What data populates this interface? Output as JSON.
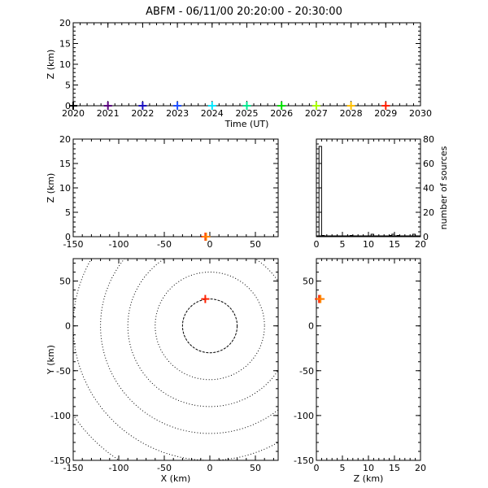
{
  "title": "ABFM - 06/11/00 20:20:00 - 20:30:00",
  "chart_data": [
    {
      "id": "time-height",
      "type": "scatter",
      "xlabel": "Time (UT)",
      "ylabel": "Z (km)",
      "xlim": [
        2020,
        2030
      ],
      "ylim": [
        0,
        20
      ],
      "xticks": [
        "2020",
        "2021",
        "2022",
        "2023",
        "2024",
        "2025",
        "2026",
        "2027",
        "2028",
        "2029",
        "2030"
      ],
      "yticks": [
        "0",
        "5",
        "10",
        "15",
        "20"
      ],
      "points": [
        {
          "x": 2020.0,
          "y": 0,
          "color": "#000000"
        },
        {
          "x": 2021.0,
          "y": 0,
          "color": "#5a007f"
        },
        {
          "x": 2022.0,
          "y": 0,
          "color": "#1a10c0"
        },
        {
          "x": 2023.0,
          "y": 0,
          "color": "#2050ff"
        },
        {
          "x": 2024.0,
          "y": 0,
          "color": "#00e8ff"
        },
        {
          "x": 2025.0,
          "y": 0,
          "color": "#00e890"
        },
        {
          "x": 2026.0,
          "y": 0,
          "color": "#00e000"
        },
        {
          "x": 2027.0,
          "y": 0,
          "color": "#a8ff00"
        },
        {
          "x": 2028.0,
          "y": 0,
          "color": "#ffc000"
        },
        {
          "x": 2029.0,
          "y": 0,
          "color": "#ff2000"
        }
      ]
    },
    {
      "id": "x-z",
      "type": "scatter",
      "xlabel": "",
      "ylabel": "Z (km)",
      "xlim": [
        -150,
        75
      ],
      "ylim": [
        0,
        20
      ],
      "xticks": [
        "-150",
        "-100",
        "-50",
        "0",
        "50"
      ],
      "yticks": [
        "0",
        "5",
        "10",
        "15",
        "20"
      ],
      "points": [
        {
          "x": -5,
          "y": 0,
          "color": "#ff2000"
        },
        {
          "x": -4,
          "y": 0,
          "color": "#ff8000"
        }
      ]
    },
    {
      "id": "histogram",
      "type": "bar",
      "xlabel": "",
      "ylabel": "number of sources",
      "xlim": [
        0,
        20
      ],
      "ylim": [
        0,
        80
      ],
      "xticks": [
        "0",
        "5",
        "10",
        "15",
        "20"
      ],
      "yticks": [
        "0",
        "20",
        "40",
        "60",
        "80"
      ],
      "bin_width": 0.5,
      "bins_start": [
        0.5,
        1.0,
        6.5,
        10.5,
        14.0,
        14.5,
        15.5,
        18.5
      ],
      "values": [
        74,
        1,
        1,
        2,
        1,
        2,
        1,
        2
      ]
    },
    {
      "id": "x-y",
      "type": "scatter",
      "xlabel": "X (km)",
      "ylabel": "Y (km)",
      "xlim": [
        -150,
        75
      ],
      "ylim": [
        -150,
        75
      ],
      "xticks": [
        "-150",
        "-100",
        "-50",
        "0",
        "50"
      ],
      "yticks": [
        "-150",
        "-100",
        "-50",
        "0",
        "50"
      ],
      "range_rings_km": [
        30,
        60,
        90,
        120,
        150,
        180
      ],
      "ring_center": [
        0,
        0
      ],
      "points": [
        {
          "x": -5,
          "y": 30,
          "color": "#ff2000"
        }
      ]
    },
    {
      "id": "z-y",
      "type": "scatter",
      "xlabel": "Z (km)",
      "ylabel": "",
      "xlim": [
        0,
        20
      ],
      "ylim": [
        -150,
        75
      ],
      "xticks": [
        "0",
        "5",
        "10",
        "15",
        "20"
      ],
      "yticks": [
        "-150",
        "-100",
        "-50",
        "0",
        "50"
      ],
      "points": [
        {
          "x": 0.5,
          "y": 30,
          "color": "#ff2000"
        },
        {
          "x": 0.8,
          "y": 30,
          "color": "#ff8000"
        }
      ]
    }
  ]
}
